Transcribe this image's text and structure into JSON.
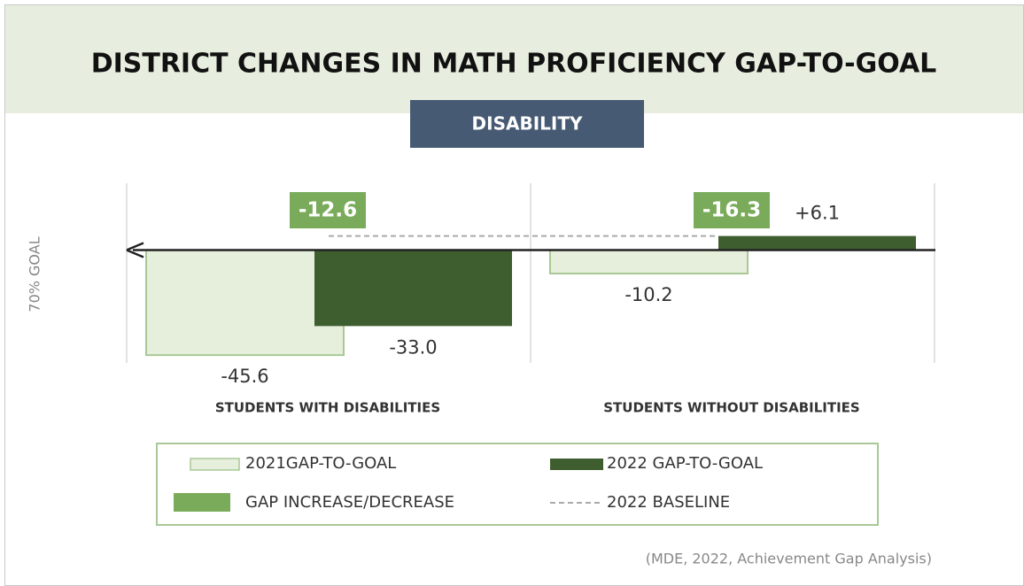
{
  "chart_data": {
    "type": "bar",
    "title": "DISTRICT CHANGES IN MATH PROFICIENCY GAP-TO-GOAL",
    "subtitle": "DISABILITY",
    "y_label": "70% GOAL",
    "categories": [
      "STUDENTS WITH DISABILITIES",
      "STUDENTS WITHOUT DISABILITIES"
    ],
    "series": [
      {
        "name": "2021GAP-TO-GOAL",
        "color": "#e6efdc",
        "values": [
          -45.6,
          -10.2
        ],
        "value_labels": [
          "-45.6",
          "-10.2"
        ]
      },
      {
        "name": "2022 GAP-TO-GOAL",
        "color": "#3f5e2f",
        "values": [
          -33.0,
          6.1
        ],
        "value_labels": [
          "-33.0",
          "+6.1"
        ]
      }
    ],
    "gap": {
      "name": "GAP INCREASE/DECREASE",
      "color": "#7aab5a",
      "values": [
        -12.6,
        -16.3
      ]
    },
    "baseline": {
      "name": "2022 BASELINE",
      "value": 6.1
    },
    "ylim": [
      -49,
      29
    ],
    "source": "(MDE, 2022, Achievement Gap Analysis)"
  }
}
